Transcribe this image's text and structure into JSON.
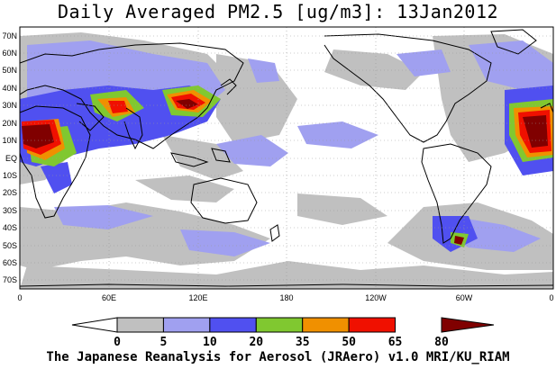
{
  "title": "Daily Averaged PM2.5 [ug/m3]: 13Jan2012",
  "footer": "The Japanese Reanalysis for Aerosol (JRAero) v1.0 MRI/KU_RIAM",
  "lat_labels": [
    "70N",
    "60N",
    "50N",
    "40N",
    "30N",
    "20N",
    "10N",
    "EQ",
    "10S",
    "20S",
    "30S",
    "40S",
    "50S",
    "60S",
    "70S"
  ],
  "lon_labels": [
    "0",
    "60E",
    "120E",
    "180",
    "120W",
    "60W",
    "0"
  ],
  "colorbar": {
    "levels": [
      "0",
      "5",
      "10",
      "20",
      "35",
      "50",
      "65",
      "80"
    ],
    "colors": [
      "#ffffff",
      "#c0c0c0",
      "#a0a0f0",
      "#5050f0",
      "#80c830",
      "#f09000",
      "#f01000",
      "#800000"
    ]
  }
}
